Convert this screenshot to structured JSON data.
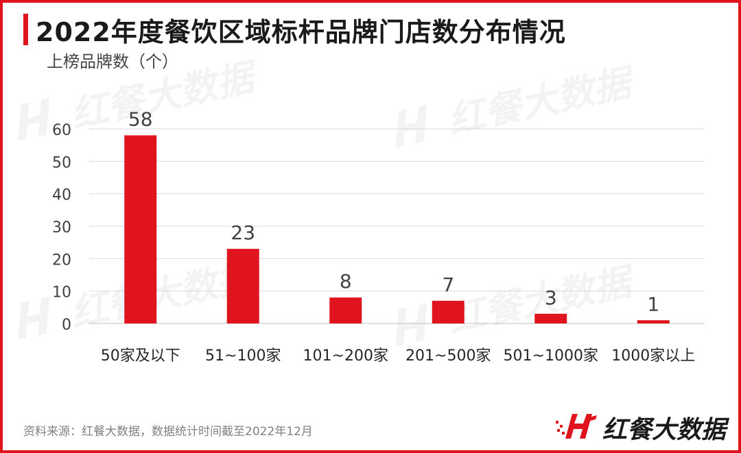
{
  "header": {
    "title": "2022年度餐饮区域标杆品牌门店数分布情况",
    "y_unit_label": "上榜品牌数（个）"
  },
  "footer": {
    "source": "资料来源：红餐大数据，数据统计时间截至2022年12月",
    "brand_name": "红餐大数据"
  },
  "watermark": {
    "text": "红餐大数据"
  },
  "colors": {
    "accent": "#e0141e",
    "bar": "#e0141e",
    "text": "#1a1a1a"
  },
  "chart_data": {
    "type": "bar",
    "categories": [
      "50家及以下",
      "51~100家",
      "101~200家",
      "201~500家",
      "501~1000家",
      "1000家以上"
    ],
    "values": [
      58,
      23,
      8,
      7,
      3,
      1
    ],
    "xlabel": "",
    "ylabel": "上榜品牌数（个）",
    "ylim": [
      0,
      60
    ],
    "yticks": [
      0,
      10,
      20,
      30,
      40,
      50,
      60
    ],
    "grid": true,
    "data_labels": true
  }
}
